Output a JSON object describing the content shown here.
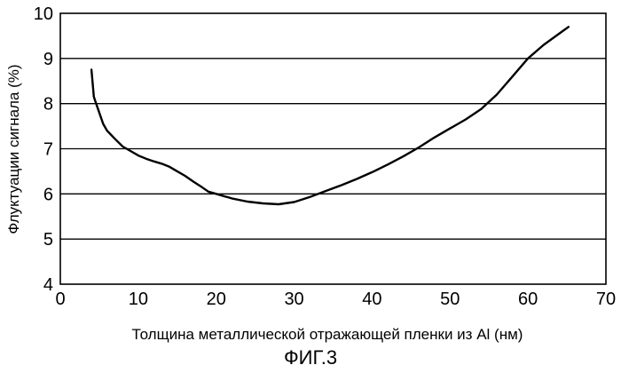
{
  "chart_data": {
    "type": "line",
    "title": "",
    "xlabel": "Толщина металлической отражающей пленки из Al (нм)",
    "ylabel": "Флуктуации сигнала (%)",
    "caption": "ФИГ.3",
    "xlim": [
      0,
      70
    ],
    "ylim": [
      4,
      10
    ],
    "xticks": [
      0,
      10,
      20,
      30,
      40,
      50,
      60,
      70
    ],
    "yticks": [
      4,
      5,
      6,
      7,
      8,
      9,
      10
    ],
    "grid": "horizontal",
    "legend": "none",
    "line_color": "#000000",
    "series": [
      {
        "x": [
          4.0,
          4.3,
          4.6,
          5.0,
          5.5,
          6.0,
          7.0,
          8.0,
          9.0,
          10.0,
          11.0,
          12.0,
          13.0,
          14.0,
          15.0,
          16.0,
          17.0,
          18.0,
          19.0,
          20.0,
          22.0,
          24.0,
          26.0,
          28.0,
          30.0,
          32.0,
          34.0,
          36.0,
          38.0,
          40.0,
          42.0,
          44.0,
          46.0,
          48.0,
          50.0,
          52.0,
          54.0,
          56.0,
          58.0,
          60.0,
          62.0,
          64.0,
          65.2
        ],
        "y": [
          8.75,
          8.15,
          8.0,
          7.8,
          7.55,
          7.4,
          7.22,
          7.05,
          6.95,
          6.85,
          6.78,
          6.72,
          6.67,
          6.6,
          6.5,
          6.4,
          6.28,
          6.17,
          6.05,
          6.0,
          5.9,
          5.83,
          5.79,
          5.77,
          5.82,
          5.93,
          6.06,
          6.19,
          6.33,
          6.48,
          6.65,
          6.83,
          7.03,
          7.25,
          7.45,
          7.65,
          7.88,
          8.2,
          8.6,
          9.0,
          9.3,
          9.55,
          9.7
        ]
      }
    ]
  }
}
